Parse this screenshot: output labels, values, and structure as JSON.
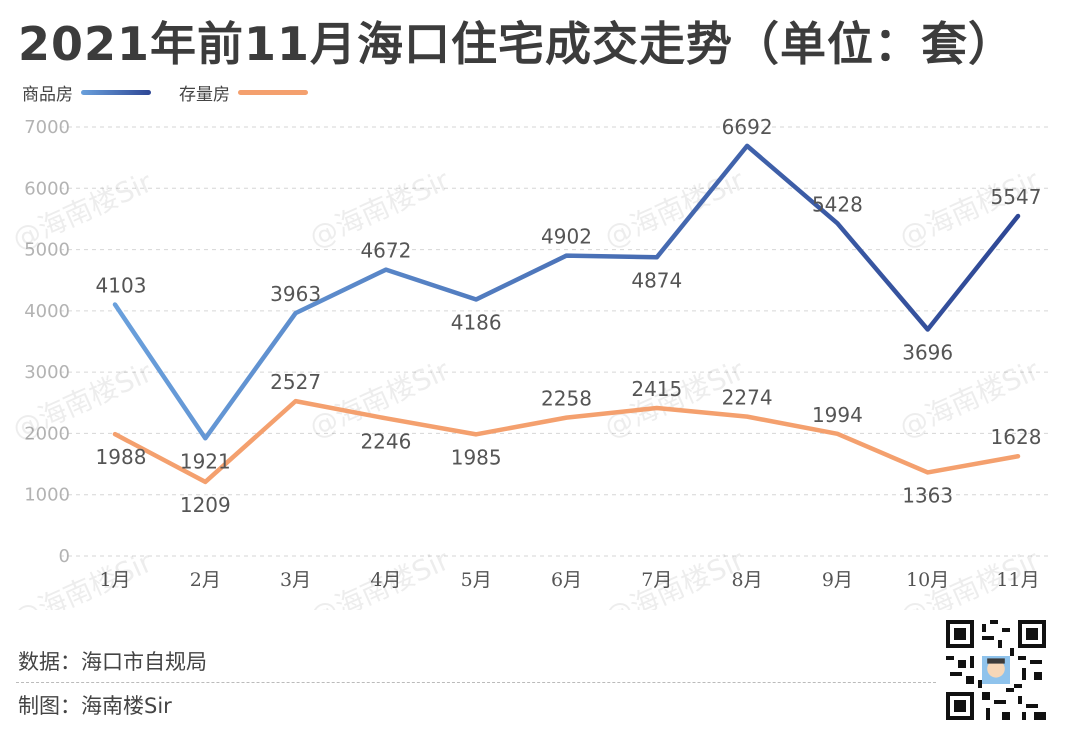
{
  "title": "2021年前11月海口住宅成交走势（单位：套）",
  "legend": [
    {
      "label": "商品房",
      "color": "#3e5fa8"
    },
    {
      "label": "存量房",
      "color": "#f4a06e"
    }
  ],
  "footer": {
    "source_label": "数据：",
    "source": "海口市自规局",
    "author_label": "制图：",
    "author": "海南楼Sir"
  },
  "watermark": "@海南楼Sir",
  "chart_data": {
    "type": "line",
    "title": "2021年前11月海口住宅成交走势（单位：套）",
    "categories": [
      "1月",
      "2月",
      "3月",
      "4月",
      "5月",
      "6月",
      "7月",
      "8月",
      "9月",
      "10月",
      "11月"
    ],
    "series": [
      {
        "name": "商品房",
        "values": [
          4103,
          1921,
          3963,
          4672,
          4186,
          4902,
          4874,
          6692,
          5428,
          3696,
          5547
        ],
        "color_start": "#6aa0dc",
        "color_end": "#2e4795"
      },
      {
        "name": "存量房",
        "values": [
          1988,
          1209,
          2527,
          2246,
          1985,
          2258,
          2415,
          2274,
          1994,
          1363,
          1628
        ],
        "color": "#f4a06e"
      }
    ],
    "ylim": [
      0,
      7000
    ],
    "yticks": [
      0,
      1000,
      2000,
      3000,
      4000,
      5000,
      6000,
      7000
    ],
    "grid": true,
    "legend_position": "top-left"
  }
}
